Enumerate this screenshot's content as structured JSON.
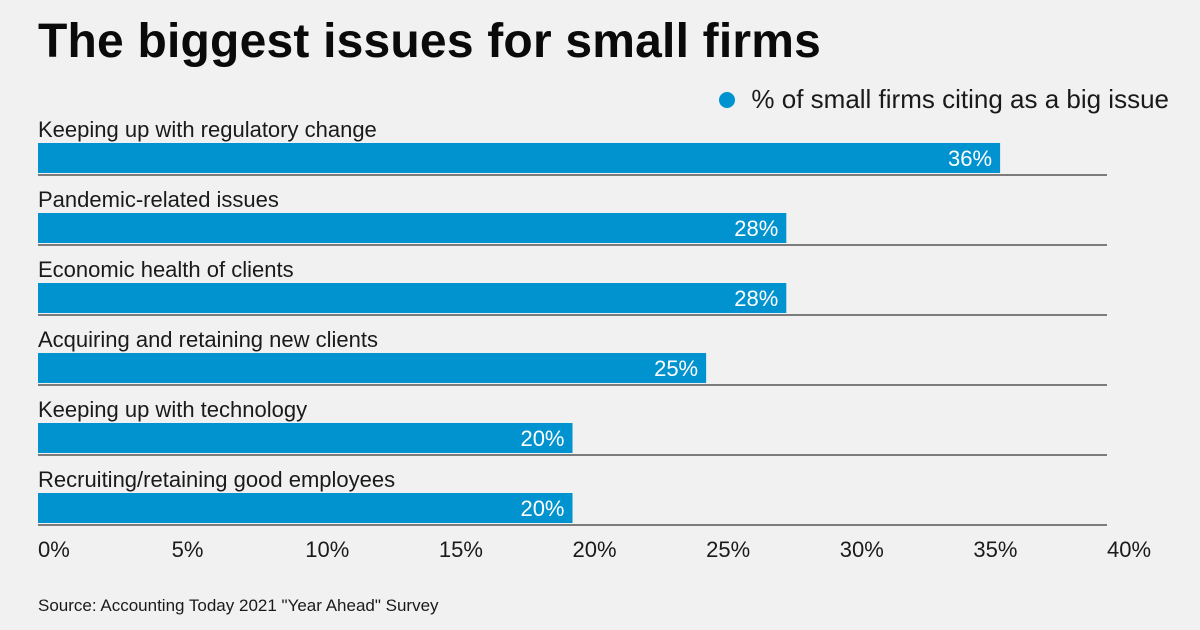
{
  "title": "The biggest issues for small firms",
  "legend": {
    "label": "% of small firms citing as a big issue",
    "color": "#0093d0"
  },
  "source": "Source: Accounting Today 2021 \"Year Ahead\" Survey",
  "chart_data": {
    "type": "bar",
    "orientation": "horizontal",
    "title": "The biggest issues for small firms",
    "xlabel": "",
    "ylabel": "",
    "categories": [
      "Keeping up with regulatory change",
      "Pandemic-related issues",
      "Economic health of clients",
      "Acquiring and retaining new clients",
      "Keeping up with technology",
      "Recruiting/retaining good employees"
    ],
    "series": [
      {
        "name": "% of small firms citing as a big issue",
        "values": [
          36,
          28,
          28,
          25,
          20,
          20
        ],
        "color": "#0093d0"
      }
    ],
    "data_labels": [
      "36%",
      "28%",
      "28%",
      "25%",
      "20%",
      "20%"
    ],
    "xlim": [
      0,
      40
    ],
    "xticks": [
      0,
      5,
      10,
      15,
      20,
      25,
      30,
      35,
      40
    ],
    "xtick_labels": [
      "0%",
      "5%",
      "10%",
      "15%",
      "20%",
      "25%",
      "30%",
      "35%",
      "40%"
    ],
    "grid": false,
    "legend_position": "top-right"
  }
}
